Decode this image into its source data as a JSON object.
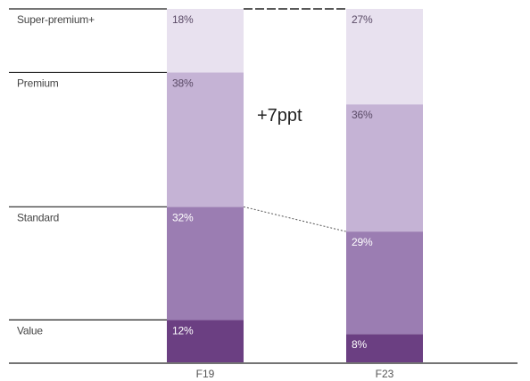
{
  "chart_data": {
    "type": "bar",
    "stacked": true,
    "normalized": true,
    "categories": [
      "F19",
      "F23"
    ],
    "series": [
      {
        "name": "Value",
        "values": [
          12,
          8
        ],
        "color": "#6b3f82",
        "label_color": "#ffffff",
        "labels": [
          "12%",
          "8%"
        ]
      },
      {
        "name": "Standard",
        "values": [
          32,
          29
        ],
        "color": "#9b7db2",
        "label_color": "#ffffff",
        "labels": [
          "32%",
          "29%"
        ]
      },
      {
        "name": "Premium",
        "values": [
          38,
          36
        ],
        "color": "#c5b3d5",
        "label_color": "#5a4a66",
        "labels": [
          "38%",
          "36%"
        ]
      },
      {
        "name": "Super-premium+",
        "values": [
          18,
          27
        ],
        "color": "#e8e1ef",
        "label_color": "#5a4a66",
        "labels": [
          "18%",
          "27%"
        ]
      }
    ],
    "annotation": "+7ppt",
    "title": "",
    "xlabel": "",
    "ylabel": ""
  }
}
